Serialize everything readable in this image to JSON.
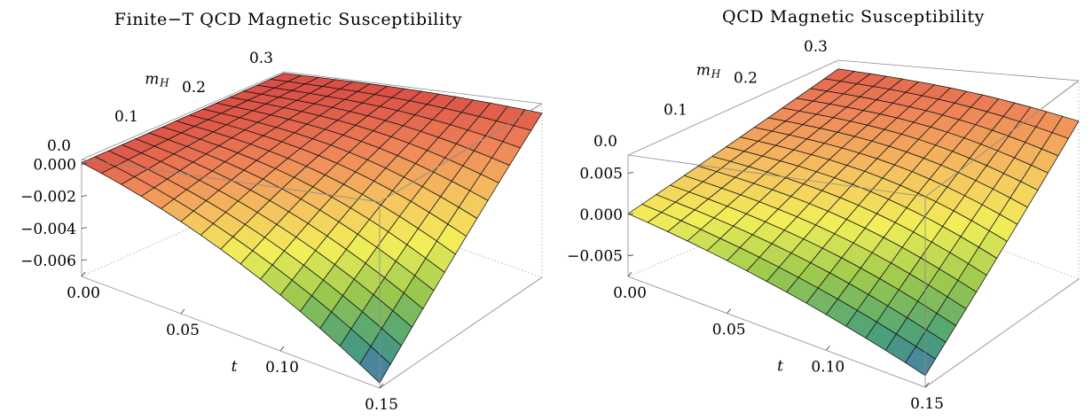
{
  "chart_data": [
    {
      "type": "surface3d",
      "title": "Finite−T QCD Magnetic Susceptibility",
      "x_axis": {
        "label": "t",
        "range": [
          0.0,
          0.15
        ],
        "ticks": [
          "0.00",
          "0.05",
          "0.10",
          "0.15"
        ]
      },
      "y_axis": {
        "label": "m",
        "label_sub": "H",
        "range": [
          0.0,
          0.3
        ],
        "ticks": [
          "0.0",
          "0.1",
          "0.2",
          "0.3"
        ]
      },
      "z_axis": {
        "range": [
          -0.007,
          0.0003
        ],
        "ticks": [
          "0.000",
          "−0.002",
          "−0.004",
          "−0.006"
        ],
        "tick_values": [
          0.0,
          -0.002,
          -0.004,
          -0.006
        ]
      },
      "grid_lines": 15,
      "corner_values": {
        "t0_m0": 0.0001,
        "t0_m03": 0.0002,
        "t015_m0": -0.0068,
        "t015_m03": -0.0001
      },
      "colormap": [
        "#4a66c8",
        "#4aa07a",
        "#9cc94e",
        "#f2ef5a",
        "#f5c060",
        "#ee8258",
        "#d94a44"
      ]
    },
    {
      "type": "surface3d",
      "title": "QCD Magnetic Susceptibility",
      "x_axis": {
        "label": "t",
        "range": [
          0.0,
          0.15
        ],
        "ticks": [
          "0.00",
          "0.05",
          "0.10",
          "0.15"
        ]
      },
      "y_axis": {
        "label": "m",
        "label_sub": "H",
        "range": [
          0.0,
          0.3
        ],
        "ticks": [
          "0.0",
          "0.1",
          "0.2",
          "0.3"
        ]
      },
      "z_axis": {
        "range": [
          -0.0075,
          0.0072
        ],
        "ticks": [
          "0.005",
          "0.000",
          "−0.005"
        ],
        "tick_values": [
          0.005,
          0.0,
          -0.005
        ]
      },
      "grid_lines": 15,
      "corner_values": {
        "t0_m0": 0.0001,
        "t0_m03": 0.0062,
        "t015_m0": -0.0066,
        "t015_m03": 0.0042
      },
      "colormap": [
        "#4a66c8",
        "#4aa07a",
        "#9cc94e",
        "#f2ef5a",
        "#f5c060",
        "#ee8258",
        "#d94a44"
      ]
    }
  ]
}
